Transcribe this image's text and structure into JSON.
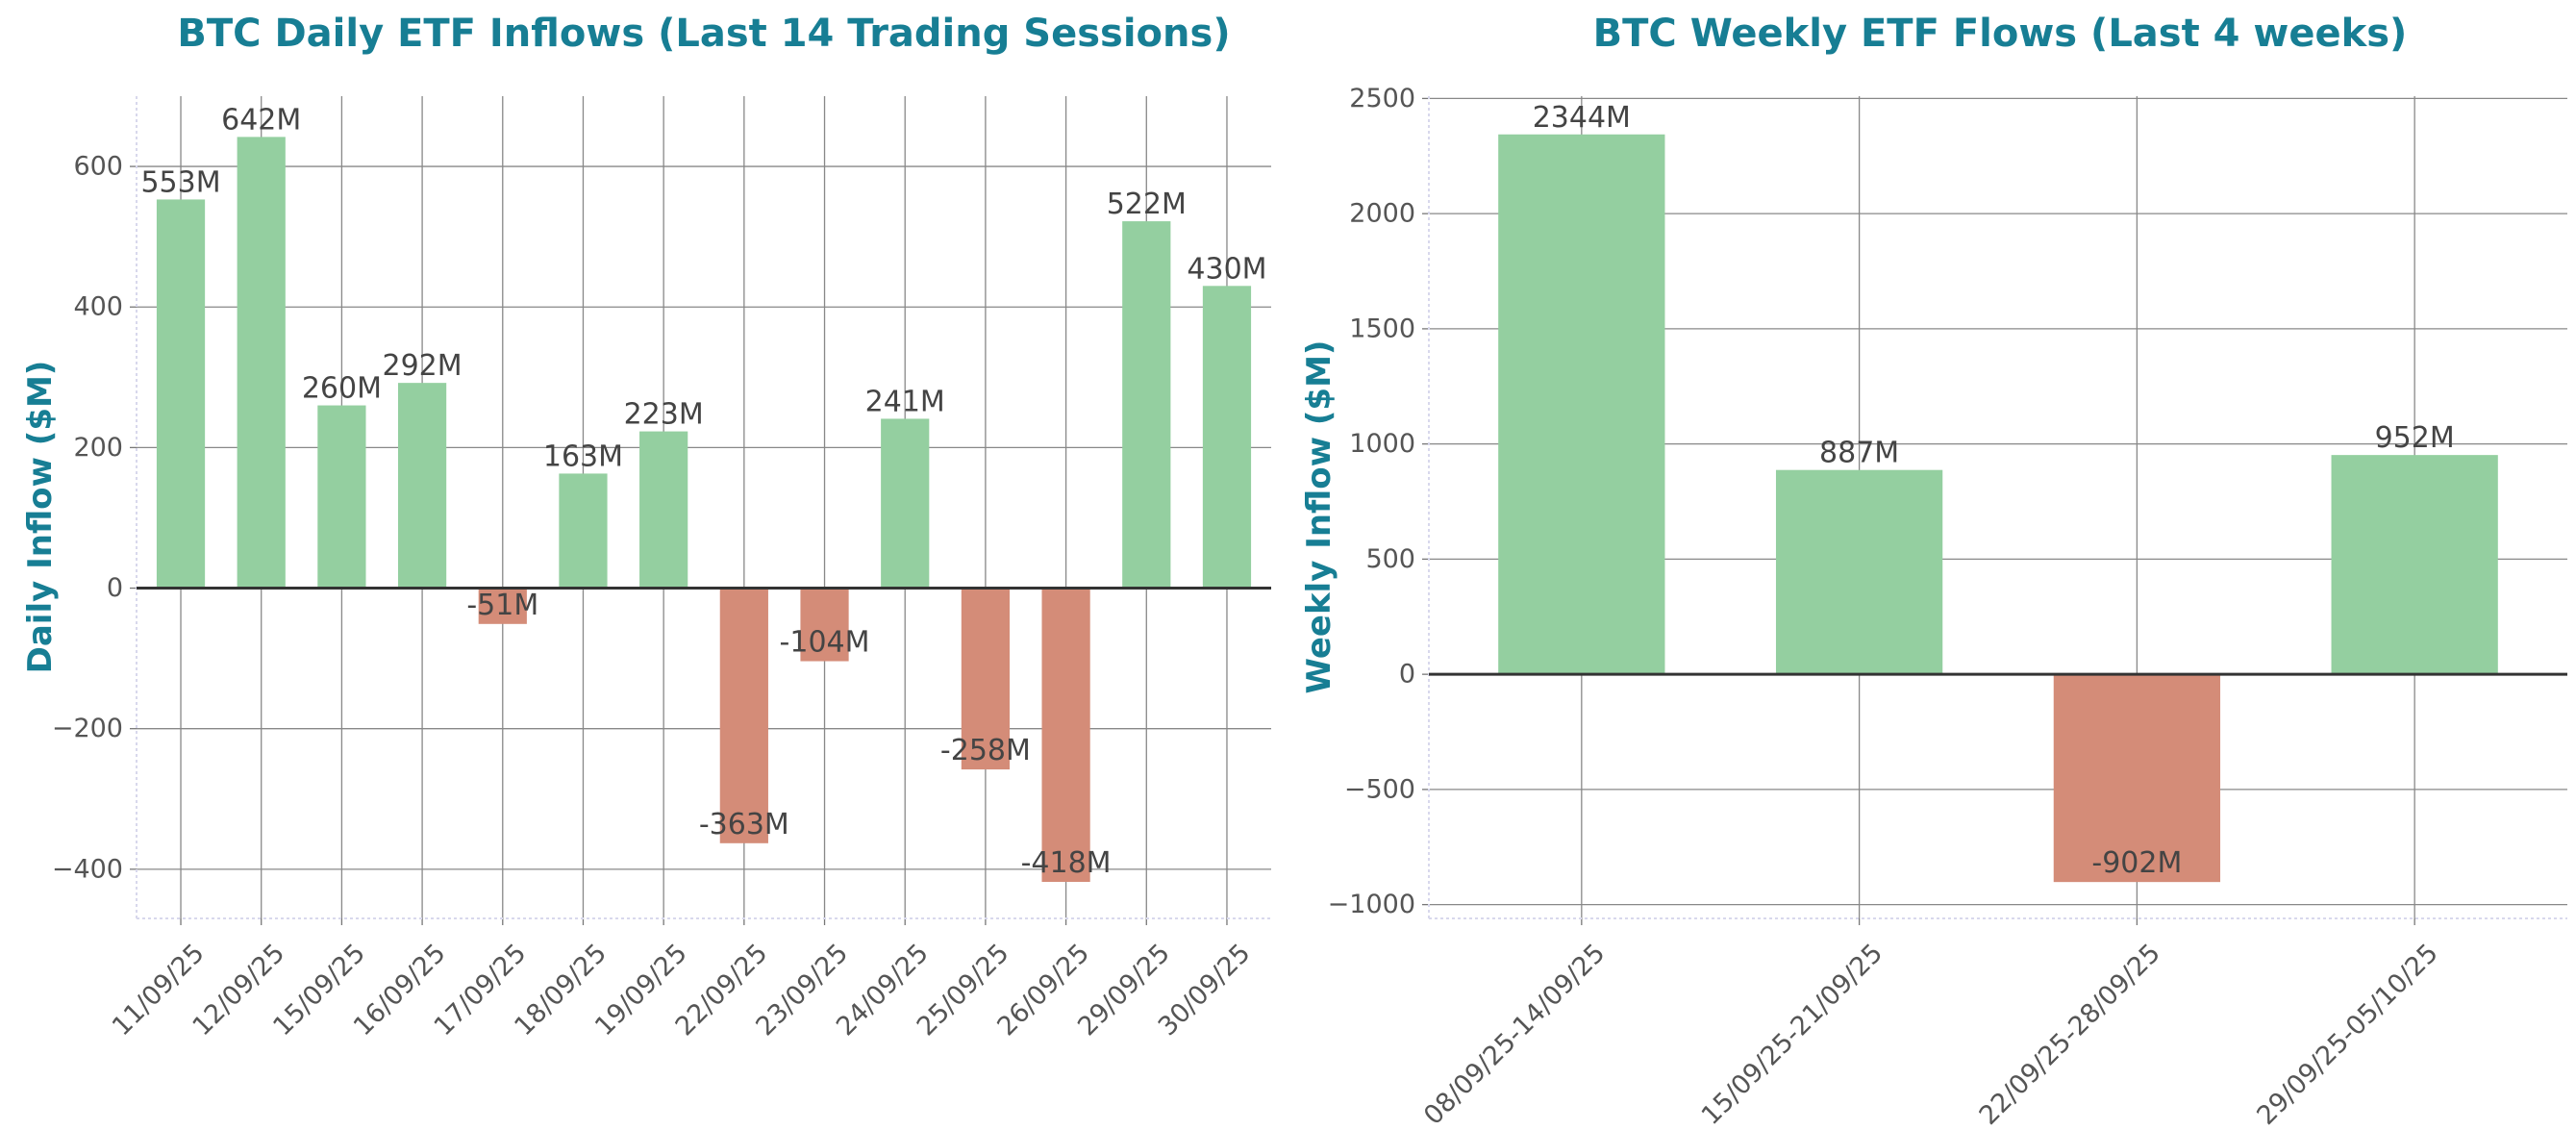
{
  "colors": {
    "positive": "#94CFA0",
    "negative": "#D48C78",
    "title": "#177E94",
    "grid": "#888888",
    "zero_line": "#333333",
    "tick_text": "#555555",
    "data_label": "#444444",
    "spine": "#D8D8EC"
  },
  "chart_data": [
    {
      "type": "bar",
      "title": "BTC Daily ETF Inflows (Last 14 Trading Sessions)",
      "xlabel": "",
      "ylabel": "Daily Inflow ($M)",
      "categories": [
        "11/09/25",
        "12/09/25",
        "15/09/25",
        "16/09/25",
        "17/09/25",
        "18/09/25",
        "19/09/25",
        "22/09/25",
        "23/09/25",
        "24/09/25",
        "25/09/25",
        "26/09/25",
        "29/09/25",
        "30/09/25"
      ],
      "values": [
        553,
        642,
        260,
        292,
        -51,
        163,
        223,
        -363,
        -104,
        241,
        -258,
        -418,
        522,
        430
      ],
      "data_labels": [
        "553M",
        "642M",
        "260M",
        "292M",
        "-51M",
        "163M",
        "223M",
        "-363M",
        "-104M",
        "241M",
        "-258M",
        "-418M",
        "522M",
        "430M"
      ],
      "ylim": [
        -470,
        700
      ],
      "yticks": [
        -400,
        -200,
        0,
        200,
        400,
        600
      ],
      "ytick_labels": [
        "−400",
        "−200",
        "0",
        "200",
        "400",
        "600"
      ],
      "grid": true
    },
    {
      "type": "bar",
      "title": "BTC Weekly ETF Flows (Last 4 weeks)",
      "xlabel": "",
      "ylabel": "Weekly Inflow ($M)",
      "categories": [
        "08/09/25-14/09/25",
        "15/09/25-21/09/25",
        "22/09/25-28/09/25",
        "29/09/25-05/10/25"
      ],
      "values": [
        2344,
        887,
        -902,
        952
      ],
      "data_labels": [
        "2344M",
        "887M",
        "-902M",
        "952M"
      ],
      "ylim": [
        -1060,
        2510
      ],
      "yticks": [
        -1000,
        -500,
        0,
        500,
        1000,
        1500,
        2000,
        2500
      ],
      "ytick_labels": [
        "−1000",
        "−500",
        "0",
        "500",
        "1000",
        "1500",
        "2000",
        "2500"
      ],
      "grid": true
    }
  ]
}
